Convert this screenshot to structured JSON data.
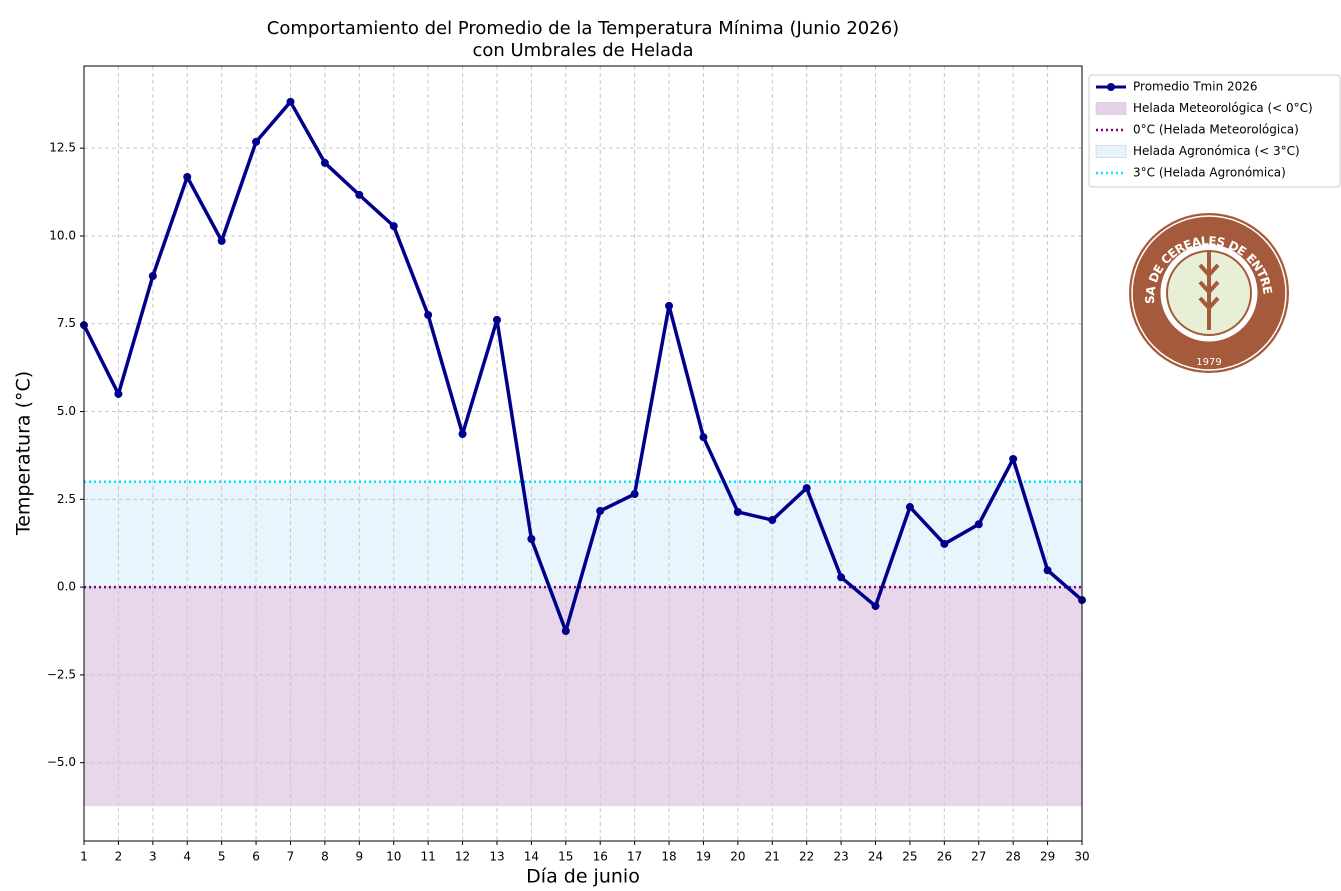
{
  "chart_data": {
    "type": "line",
    "title": [
      "Comportamiento del Promedio de la Temperatura Mínima (Junio 2026)",
      "con Umbrales de Helada"
    ],
    "xlabel": "Día de junio",
    "ylabel": "Temperatura (°C)",
    "x": [
      1,
      2,
      3,
      4,
      5,
      6,
      7,
      8,
      9,
      10,
      11,
      12,
      13,
      14,
      15,
      16,
      17,
      18,
      19,
      20,
      21,
      22,
      23,
      24,
      25,
      26,
      27,
      28,
      29,
      30
    ],
    "series": [
      {
        "name": "Promedio Tmin 2026",
        "color": "#00008b",
        "values": [
          7.46,
          5.5,
          8.86,
          11.68,
          9.86,
          12.68,
          13.82,
          12.08,
          11.17,
          10.28,
          7.75,
          4.36,
          7.61,
          1.37,
          -1.25,
          2.17,
          2.65,
          8.01,
          4.27,
          2.14,
          1.91,
          2.82,
          0.28,
          -0.54,
          2.28,
          1.23,
          1.79,
          3.65,
          0.48,
          -0.37
        ]
      }
    ],
    "bands": [
      {
        "name": "Helada Meteorológica (< 0°C)",
        "color": "#e6d2e8",
        "range": [
          -6.24,
          0
        ]
      },
      {
        "name": "Helada Agronómica (< 3°C)",
        "color": "#e6f4fc",
        "range": [
          0,
          3
        ]
      }
    ],
    "hlines": [
      {
        "name": "0°C (Helada Meteorológica)",
        "color": "#800080",
        "value": 0
      },
      {
        "name": "3°C (Helada Agronómica)",
        "color": "#00e5ff",
        "value": 3
      }
    ],
    "xlim": [
      1,
      30
    ],
    "xticks": [
      1,
      2,
      3,
      4,
      5,
      6,
      7,
      8,
      9,
      10,
      11,
      12,
      13,
      14,
      15,
      16,
      17,
      18,
      19,
      20,
      21,
      22,
      23,
      24,
      25,
      26,
      27,
      28,
      29,
      30
    ],
    "ylim": [
      -7.23,
      14.84
    ],
    "yticks": [
      {
        "value": -5,
        "label": "−5.0"
      },
      {
        "value": -2.5,
        "label": "−2.5"
      },
      {
        "value": 0,
        "label": "0.0"
      },
      {
        "value": 2.5,
        "label": "2.5"
      },
      {
        "value": 5,
        "label": "5.0"
      },
      {
        "value": 7.5,
        "label": "7.5"
      },
      {
        "value": 10,
        "label": "10.0"
      },
      {
        "value": 12.5,
        "label": "12.5"
      }
    ],
    "grid": true,
    "legend": "outside-upper-right"
  },
  "logo": {
    "text": "BOLSA DE CEREALES DE ENTRE RÍOS",
    "year": "1979"
  }
}
